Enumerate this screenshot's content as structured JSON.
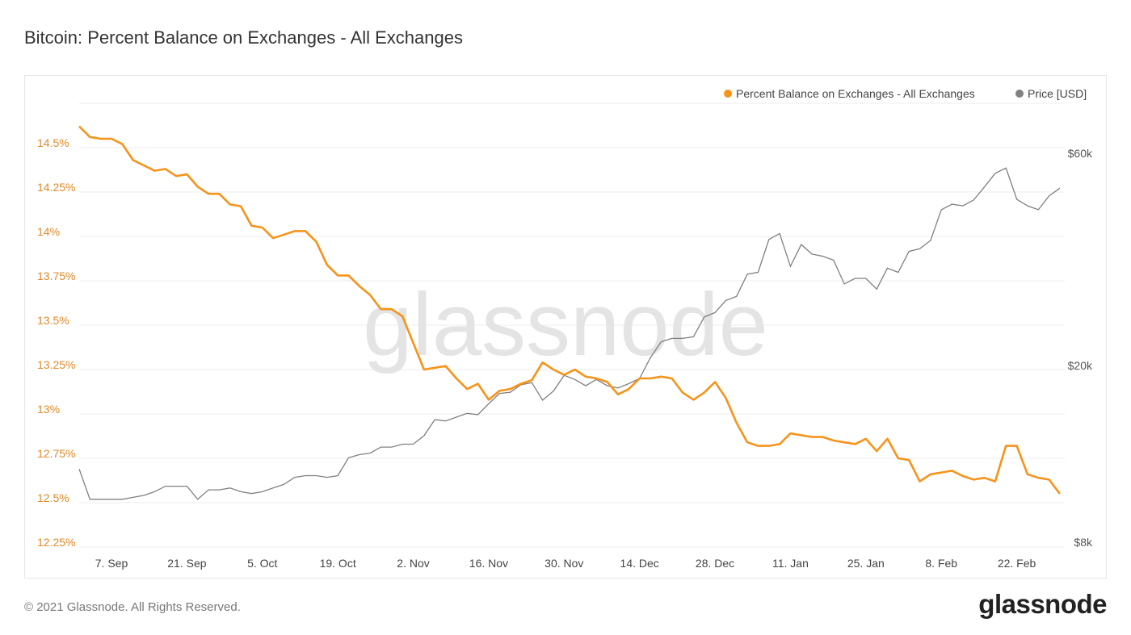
{
  "header": {
    "title": "Bitcoin: Percent Balance on Exchanges - All Exchanges"
  },
  "footer": {
    "copyright": "© 2021 Glassnode. All Rights Reserved.",
    "logo_text": "glassnode"
  },
  "watermark": "glassnode",
  "chart_data": {
    "type": "line",
    "title": "Bitcoin: Percent Balance on Exchanges - All Exchanges",
    "legend_position": "top-right",
    "grid": true,
    "colors": {
      "balance": "#f7931a",
      "price": "#808080",
      "left_axis": "#e08a2a"
    },
    "x_ticks": [
      "7. Sep",
      "21. Sep",
      "5. Oct",
      "19. Oct",
      "2. Nov",
      "16. Nov",
      "30. Nov",
      "14. Dec",
      "28. Dec",
      "11. Jan",
      "25. Jan",
      "8. Feb",
      "22. Feb"
    ],
    "x_tick_dates": [
      "2020-09-07",
      "2020-09-21",
      "2020-10-05",
      "2020-10-19",
      "2020-11-02",
      "2020-11-16",
      "2020-11-30",
      "2020-12-14",
      "2020-12-28",
      "2021-01-11",
      "2021-01-25",
      "2021-02-08",
      "2021-02-22"
    ],
    "y_left": {
      "ticks": [
        "14.5%",
        "14.25%",
        "14%",
        "13.75%",
        "13.5%",
        "13.25%",
        "13%",
        "12.75%",
        "12.5%",
        "12.25%"
      ],
      "tick_values": [
        14.5,
        14.25,
        14,
        13.75,
        13.5,
        13.25,
        13,
        12.75,
        12.5,
        12.25
      ],
      "ylim": [
        12.25,
        14.75
      ]
    },
    "y_right": {
      "scale": "log",
      "ticks": [
        "$60k",
        "$20k",
        "$8k"
      ],
      "tick_values": [
        60000,
        20000,
        8000
      ]
    },
    "x": [
      "2020-09-01",
      "2020-09-03",
      "2020-09-05",
      "2020-09-07",
      "2020-09-09",
      "2020-09-11",
      "2020-09-13",
      "2020-09-15",
      "2020-09-17",
      "2020-09-19",
      "2020-09-21",
      "2020-09-23",
      "2020-09-25",
      "2020-09-27",
      "2020-09-29",
      "2020-10-01",
      "2020-10-03",
      "2020-10-05",
      "2020-10-07",
      "2020-10-09",
      "2020-10-11",
      "2020-10-13",
      "2020-10-15",
      "2020-10-17",
      "2020-10-19",
      "2020-10-21",
      "2020-10-23",
      "2020-10-25",
      "2020-10-27",
      "2020-10-29",
      "2020-10-31",
      "2020-11-02",
      "2020-11-04",
      "2020-11-06",
      "2020-11-08",
      "2020-11-10",
      "2020-11-12",
      "2020-11-14",
      "2020-11-16",
      "2020-11-18",
      "2020-11-20",
      "2020-11-22",
      "2020-11-24",
      "2020-11-26",
      "2020-11-28",
      "2020-11-30",
      "2020-12-02",
      "2020-12-04",
      "2020-12-06",
      "2020-12-08",
      "2020-12-10",
      "2020-12-12",
      "2020-12-14",
      "2020-12-16",
      "2020-12-18",
      "2020-12-20",
      "2020-12-22",
      "2020-12-24",
      "2020-12-26",
      "2020-12-28",
      "2020-12-30",
      "2021-01-01",
      "2021-01-03",
      "2021-01-05",
      "2021-01-07",
      "2021-01-09",
      "2021-01-11",
      "2021-01-13",
      "2021-01-15",
      "2021-01-17",
      "2021-01-19",
      "2021-01-21",
      "2021-01-23",
      "2021-01-25",
      "2021-01-27",
      "2021-01-29",
      "2021-01-31",
      "2021-02-02",
      "2021-02-04",
      "2021-02-06",
      "2021-02-08",
      "2021-02-10",
      "2021-02-12",
      "2021-02-14",
      "2021-02-16",
      "2021-02-18",
      "2021-02-20",
      "2021-02-22",
      "2021-02-24",
      "2021-02-26",
      "2021-02-28",
      "2021-03-02"
    ],
    "series": [
      {
        "name": "Percent Balance on Exchanges - All Exchanges",
        "axis": "left",
        "unit": "%",
        "values": [
          14.62,
          14.56,
          14.55,
          14.55,
          14.52,
          14.43,
          14.4,
          14.37,
          14.38,
          14.34,
          14.35,
          14.28,
          14.24,
          14.24,
          14.18,
          14.17,
          14.06,
          14.05,
          13.99,
          14.01,
          14.03,
          14.03,
          13.97,
          13.84,
          13.78,
          13.78,
          13.72,
          13.67,
          13.59,
          13.59,
          13.55,
          13.4,
          13.25,
          13.26,
          13.27,
          13.2,
          13.14,
          13.17,
          13.08,
          13.13,
          13.14,
          13.17,
          13.19,
          13.29,
          13.25,
          13.22,
          13.25,
          13.21,
          13.2,
          13.18,
          13.11,
          13.14,
          13.2,
          13.2,
          13.21,
          13.2,
          13.12,
          13.08,
          13.12,
          13.18,
          13.09,
          12.95,
          12.84,
          12.82,
          12.82,
          12.83,
          12.89,
          12.88,
          12.87,
          12.87,
          12.85,
          12.84,
          12.83,
          12.86,
          12.79,
          12.86,
          12.75,
          12.74,
          12.62,
          12.66,
          12.67,
          12.68,
          12.65,
          12.63,
          12.64,
          12.62,
          12.82,
          12.82,
          12.66,
          12.64,
          12.63,
          12.55
        ]
      },
      {
        "name": "Price [USD]",
        "axis": "right",
        "unit": "USD",
        "values": [
          11700,
          10000,
          10000,
          10000,
          10000,
          10100,
          10200,
          10400,
          10700,
          10700,
          10700,
          10000,
          10500,
          10500,
          10600,
          10400,
          10300,
          10400,
          10600,
          10800,
          11200,
          11300,
          11300,
          11200,
          11300,
          12400,
          12600,
          12700,
          13100,
          13100,
          13300,
          13300,
          13900,
          15100,
          15000,
          15300,
          15600,
          15500,
          16400,
          17300,
          17400,
          18100,
          18300,
          16700,
          17500,
          19000,
          18600,
          18000,
          18600,
          18000,
          17800,
          18200,
          18700,
          20800,
          22600,
          23000,
          23000,
          23200,
          25700,
          26300,
          28000,
          28600,
          32100,
          32400,
          38400,
          39600,
          33400,
          37400,
          35600,
          35200,
          34500,
          30500,
          31400,
          31400,
          29700,
          33100,
          32400,
          36100,
          36600,
          38200,
          44800,
          46100,
          45700,
          47100,
          50400,
          54100,
          55600,
          47300,
          45700,
          44800,
          48100,
          50100
        ]
      }
    ]
  }
}
